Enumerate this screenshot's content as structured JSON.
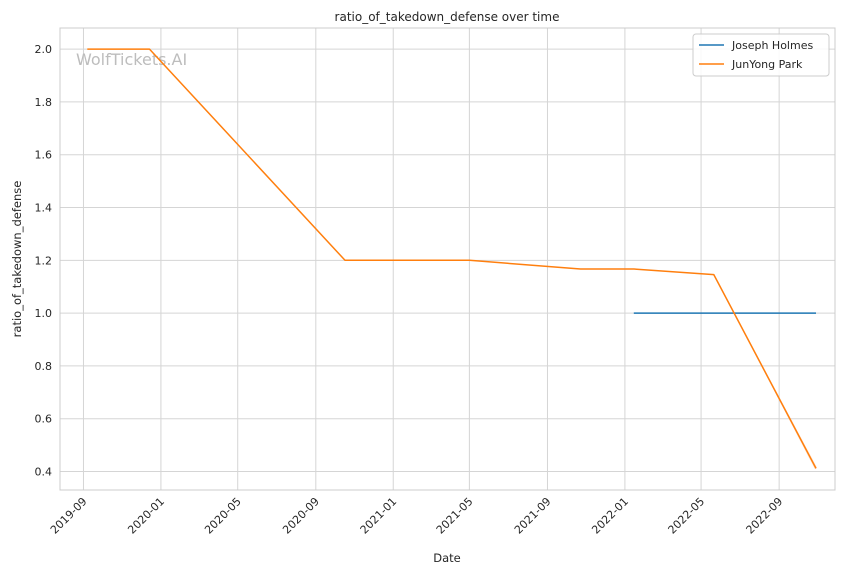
{
  "chart_data": {
    "type": "line",
    "title": "ratio_of_takedown_defense over time",
    "xlabel": "Date",
    "ylabel": "ratio_of_takedown_defense",
    "watermark": "WolfTickets.AI",
    "x_ticks": [
      "2019-09",
      "2020-01",
      "2020-05",
      "2020-09",
      "2021-01",
      "2021-05",
      "2021-09",
      "2022-01",
      "2022-05",
      "2022-09"
    ],
    "y_ticks": [
      "0.4",
      "0.6",
      "0.8",
      "1.0",
      "1.2",
      "1.4",
      "1.6",
      "1.8",
      "2.0"
    ],
    "xlim": [
      "2019-07-26",
      "2022-11-28"
    ],
    "ylim": [
      0.33,
      2.08
    ],
    "grid": true,
    "legend_position": "top-right",
    "series": [
      {
        "name": "Joseph Holmes",
        "color": "#1f77b4",
        "x": [
          "2022-01-15",
          "2022-10-29"
        ],
        "y": [
          1.0,
          1.0
        ]
      },
      {
        "name": "JunYong Park",
        "color": "#ff7f0e",
        "x": [
          "2019-09-07",
          "2019-12-14",
          "2020-10-17",
          "2021-05-01",
          "2021-10-23",
          "2022-01-15",
          "2022-05-21",
          "2022-10-29"
        ],
        "y": [
          2.0,
          2.0,
          1.2,
          1.2,
          1.167,
          1.167,
          1.146,
          0.412
        ]
      }
    ]
  }
}
